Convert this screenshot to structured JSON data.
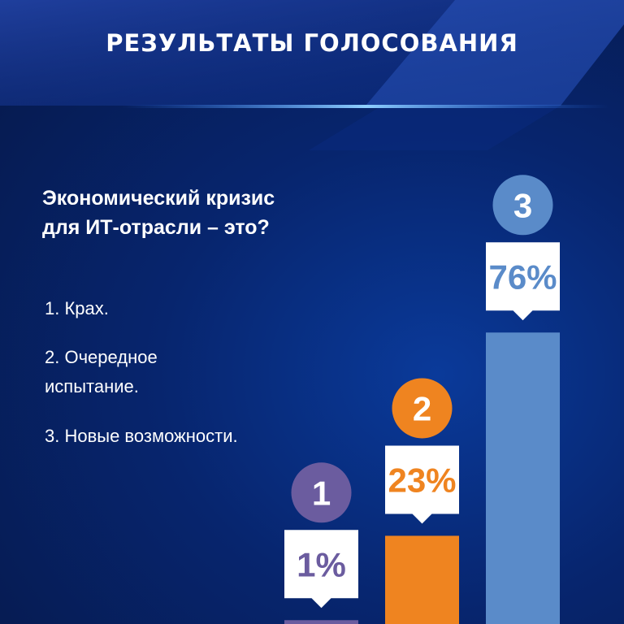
{
  "chart_data": {
    "type": "bar",
    "title": "РЕЗУЛЬТАТЫ ГОЛОСОВАНИЯ",
    "subtitle": "Экономический кризис для ИТ-отрасли – это?",
    "categories": [
      "1",
      "2",
      "3"
    ],
    "values": [
      1,
      23,
      76
    ],
    "value_labels": [
      "1%",
      "23%",
      "76%"
    ],
    "colors": [
      "#6b5c9f",
      "#ef8420",
      "#5a8bc9"
    ],
    "legend": [
      "1. Крах.",
      "2. Очередное испытание.",
      "3. Новые возможности."
    ]
  }
}
